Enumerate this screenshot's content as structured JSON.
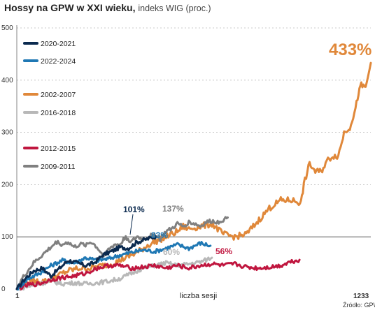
{
  "header": {
    "title_bold": "Hossy na GPW w XXI wieku,",
    "title_rest": "indeks WIG (proc.)"
  },
  "source": "Źródło: GPW",
  "chart_data": {
    "type": "line",
    "title": "Hossy na GPW w XXI wieku, indeks WIG (proc.)",
    "xlabel": "liczba sesji",
    "ylabel": "",
    "xlim": [
      1,
      1233
    ],
    "ylim": [
      0,
      500
    ],
    "x_tick_labels": [
      "1",
      "1233"
    ],
    "y_ticks": [
      0,
      100,
      200,
      300,
      400,
      500
    ],
    "reference_line": 100,
    "grid": "dotted horizontal",
    "legend_position": "top-left",
    "series": [
      {
        "name": "2020-2021",
        "color": "#0b2a4f",
        "end_label": "101%",
        "sessions": 485,
        "points": [
          [
            1,
            0
          ],
          [
            30,
            20
          ],
          [
            60,
            35
          ],
          [
            90,
            40
          ],
          [
            120,
            25
          ],
          [
            150,
            40
          ],
          [
            180,
            55
          ],
          [
            210,
            50
          ],
          [
            240,
            45
          ],
          [
            270,
            50
          ],
          [
            300,
            65
          ],
          [
            330,
            72
          ],
          [
            360,
            80
          ],
          [
            390,
            78
          ],
          [
            420,
            90
          ],
          [
            450,
            95
          ],
          [
            485,
            101
          ]
        ]
      },
      {
        "name": "2022-2024",
        "color": "#1f78b4",
        "end_label": "83%",
        "sessions": 675,
        "points": [
          [
            1,
            0
          ],
          [
            40,
            20
          ],
          [
            80,
            30
          ],
          [
            120,
            45
          ],
          [
            160,
            55
          ],
          [
            200,
            50
          ],
          [
            240,
            60
          ],
          [
            280,
            55
          ],
          [
            320,
            58
          ],
          [
            360,
            65
          ],
          [
            400,
            70
          ],
          [
            440,
            75
          ],
          [
            480,
            72
          ],
          [
            520,
            78
          ],
          [
            560,
            85
          ],
          [
            600,
            78
          ],
          [
            640,
            88
          ],
          [
            675,
            83
          ]
        ]
      },
      {
        "name": "2002-2007",
        "color": "#e0883a",
        "end_label": "433%",
        "sessions": 1233,
        "points": [
          [
            1,
            0
          ],
          [
            30,
            10
          ],
          [
            60,
            15
          ],
          [
            100,
            15
          ],
          [
            140,
            25
          ],
          [
            180,
            35
          ],
          [
            220,
            40
          ],
          [
            260,
            40
          ],
          [
            300,
            45
          ],
          [
            340,
            50
          ],
          [
            380,
            60
          ],
          [
            420,
            70
          ],
          [
            460,
            85
          ],
          [
            500,
            95
          ],
          [
            520,
            100
          ],
          [
            560,
            110
          ],
          [
            580,
            120
          ],
          [
            600,
            115
          ],
          [
            640,
            120
          ],
          [
            680,
            125
          ],
          [
            720,
            105
          ],
          [
            760,
            100
          ],
          [
            800,
            105
          ],
          [
            840,
            130
          ],
          [
            880,
            155
          ],
          [
            920,
            170
          ],
          [
            960,
            170
          ],
          [
            990,
            165
          ],
          [
            1000,
            200
          ],
          [
            1020,
            240
          ],
          [
            1040,
            225
          ],
          [
            1060,
            225
          ],
          [
            1080,
            245
          ],
          [
            1100,
            255
          ],
          [
            1120,
            255
          ],
          [
            1140,
            300
          ],
          [
            1160,
            310
          ],
          [
            1180,
            345
          ],
          [
            1190,
            375
          ],
          [
            1200,
            390
          ],
          [
            1215,
            385
          ],
          [
            1233,
            433
          ]
        ]
      },
      {
        "name": "2016-2018",
        "color": "#b8b8b8",
        "end_label": "60%",
        "sessions": 680,
        "points": [
          [
            1,
            0
          ],
          [
            40,
            5
          ],
          [
            80,
            10
          ],
          [
            120,
            15
          ],
          [
            160,
            10
          ],
          [
            200,
            12
          ],
          [
            240,
            10
          ],
          [
            280,
            12
          ],
          [
            320,
            15
          ],
          [
            360,
            20
          ],
          [
            400,
            30
          ],
          [
            440,
            40
          ],
          [
            480,
            45
          ],
          [
            520,
            50
          ],
          [
            560,
            45
          ],
          [
            600,
            48
          ],
          [
            640,
            52
          ],
          [
            680,
            60
          ]
        ]
      },
      {
        "name": "2012-2015",
        "color": "#c0163f",
        "end_label": "56%",
        "sessions": 985,
        "points": [
          [
            1,
            0
          ],
          [
            40,
            8
          ],
          [
            80,
            10
          ],
          [
            120,
            18
          ],
          [
            160,
            22
          ],
          [
            200,
            25
          ],
          [
            240,
            30
          ],
          [
            280,
            40
          ],
          [
            320,
            45
          ],
          [
            360,
            45
          ],
          [
            400,
            40
          ],
          [
            440,
            42
          ],
          [
            480,
            45
          ],
          [
            520,
            40
          ],
          [
            560,
            45
          ],
          [
            600,
            40
          ],
          [
            640,
            45
          ],
          [
            680,
            48
          ],
          [
            720,
            45
          ],
          [
            760,
            48
          ],
          [
            800,
            42
          ],
          [
            840,
            40
          ],
          [
            880,
            42
          ],
          [
            920,
            45
          ],
          [
            950,
            52
          ],
          [
            985,
            56
          ]
        ]
      },
      {
        "name": "2009-2011",
        "color": "#808080",
        "end_label": "137%",
        "sessions": 735,
        "points": [
          [
            1,
            0
          ],
          [
            20,
            20
          ],
          [
            40,
            35
          ],
          [
            60,
            50
          ],
          [
            80,
            60
          ],
          [
            100,
            70
          ],
          [
            120,
            80
          ],
          [
            140,
            90
          ],
          [
            160,
            85
          ],
          [
            180,
            90
          ],
          [
            200,
            80
          ],
          [
            220,
            85
          ],
          [
            240,
            85
          ],
          [
            260,
            90
          ],
          [
            280,
            80
          ],
          [
            300,
            65
          ],
          [
            320,
            75
          ],
          [
            340,
            85
          ],
          [
            360,
            85
          ],
          [
            380,
            100
          ],
          [
            400,
            90
          ],
          [
            420,
            100
          ],
          [
            440,
            95
          ],
          [
            460,
            100
          ],
          [
            480,
            105
          ],
          [
            500,
            95
          ],
          [
            520,
            110
          ],
          [
            540,
            115
          ],
          [
            560,
            125
          ],
          [
            580,
            120
          ],
          [
            600,
            128
          ],
          [
            620,
            125
          ],
          [
            640,
            120
          ],
          [
            660,
            128
          ],
          [
            680,
            130
          ],
          [
            700,
            128
          ],
          [
            735,
            137
          ]
        ]
      }
    ]
  }
}
